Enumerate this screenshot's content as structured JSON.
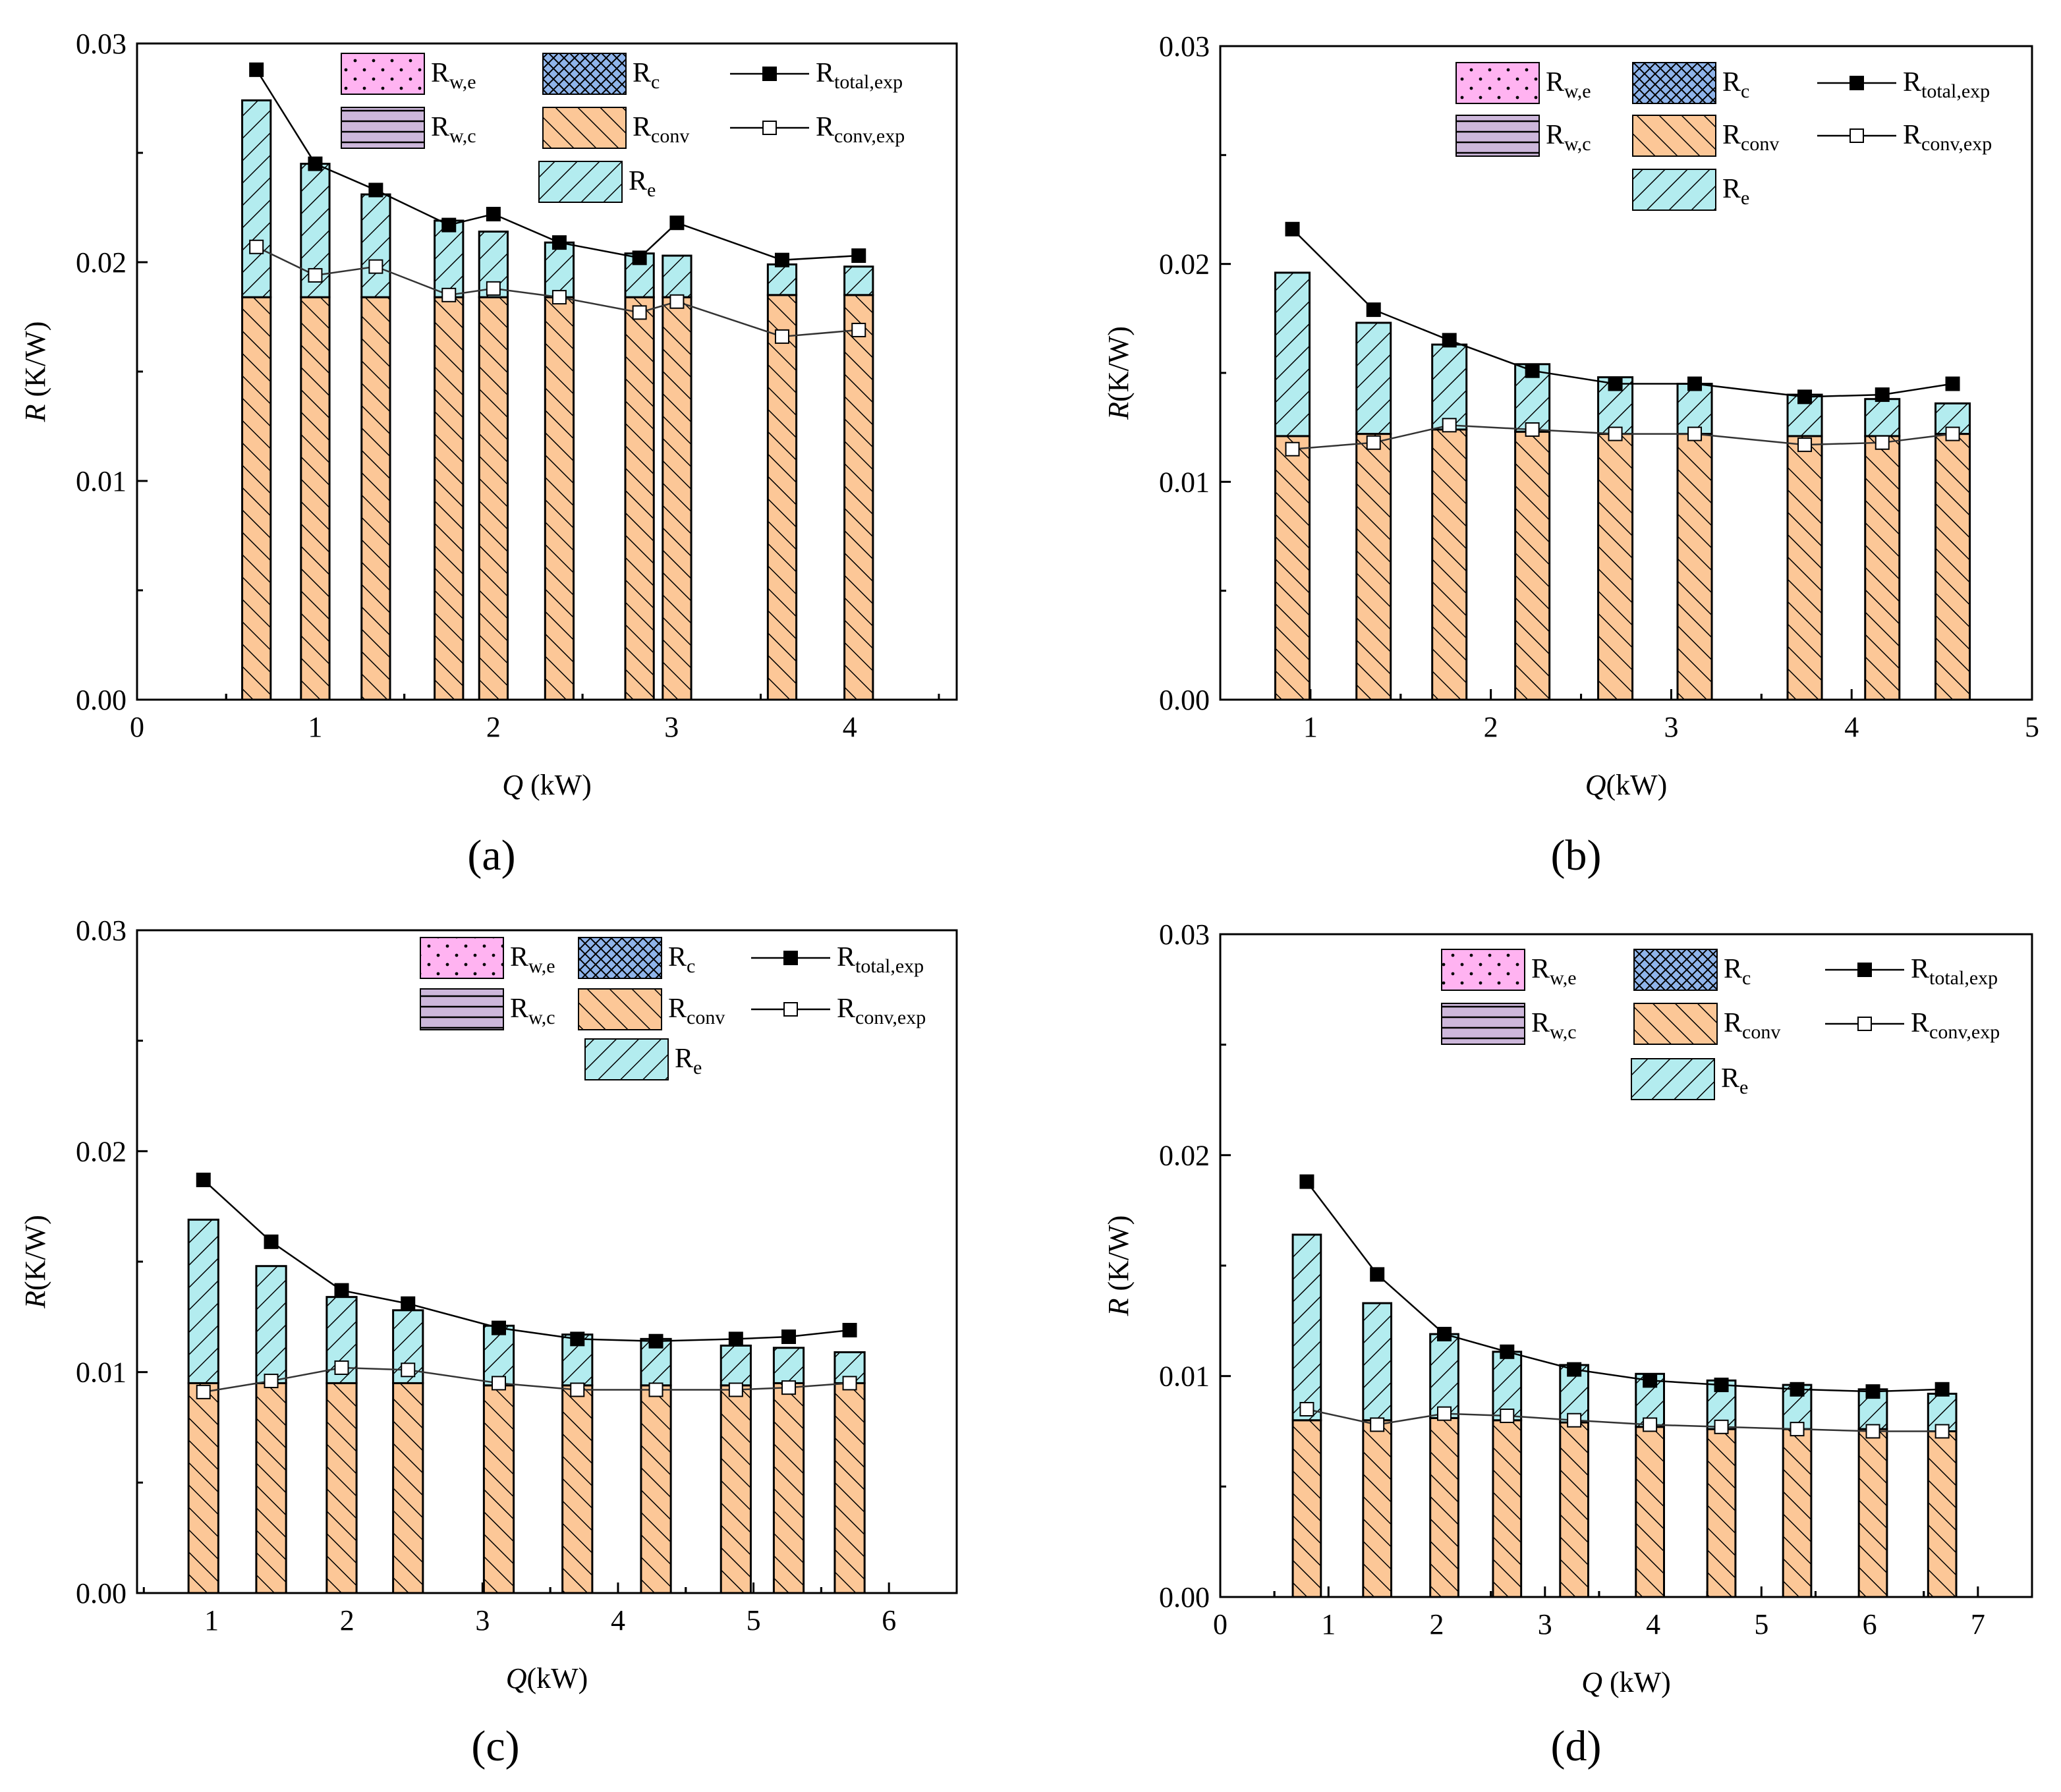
{
  "colors": {
    "conv": "#fcc797",
    "evap": "#b3ecef",
    "rwe": "#ffb3f1",
    "rwc": "#cdb7db",
    "rc": "#8fb4ea",
    "line": "#000000",
    "hatch": "#000000"
  },
  "chart_data": [
    {
      "panel": "a",
      "type": "bar",
      "stacked": true,
      "caption": "(a)",
      "xlabel_var": "Q",
      "xlabel_unit": " (kW)",
      "ylabel_var": "R",
      "ylabel_unit": " (K/W)",
      "xlim": [
        0,
        4.6
      ],
      "ylim": [
        0,
        0.03
      ],
      "xticks": [
        0,
        1,
        2,
        3,
        4
      ],
      "yticks": [
        "0.00",
        "0.01",
        "0.02",
        "0.03"
      ],
      "bar_width_kw": 0.16,
      "x": [
        0.67,
        1.0,
        1.34,
        1.75,
        2.0,
        2.37,
        2.82,
        3.03,
        3.62,
        4.05
      ],
      "series": [
        {
          "name": "Rconv",
          "values": [
            0.0184,
            0.0184,
            0.0184,
            0.0184,
            0.0184,
            0.0184,
            0.0184,
            0.0184,
            0.0185,
            0.0185
          ]
        },
        {
          "name": "Re",
          "values": [
            0.009,
            0.0061,
            0.0047,
            0.0035,
            0.003,
            0.0025,
            0.002,
            0.0019,
            0.0014,
            0.0013
          ]
        }
      ],
      "lines": [
        {
          "name": "Rtotal,exp",
          "values": [
            0.0288,
            0.0245,
            0.0233,
            0.0217,
            0.0222,
            0.0209,
            0.0202,
            0.0218,
            0.0201,
            0.0203
          ]
        },
        {
          "name": "Rconv,exp",
          "values": [
            0.0207,
            0.0194,
            0.0198,
            0.0185,
            0.0188,
            0.0184,
            0.0177,
            0.0182,
            0.0166,
            0.0169
          ]
        }
      ]
    },
    {
      "panel": "b",
      "type": "bar",
      "stacked": true,
      "caption": "(b)",
      "xlabel_var": "Q",
      "xlabel_unit": "(kW)",
      "ylabel_var": "R",
      "ylabel_unit": "(K/W)",
      "xlim": [
        0.5,
        5
      ],
      "ylim": [
        0,
        0.03
      ],
      "xticks": [
        1,
        2,
        3,
        4,
        5
      ],
      "yticks": [
        "0.00",
        "0.01",
        "0.02",
        "0.03"
      ],
      "bar_width_kw": 0.19,
      "x": [
        0.9,
        1.35,
        1.77,
        2.23,
        2.69,
        3.13,
        3.74,
        4.17,
        4.56
      ],
      "series": [
        {
          "name": "Rconv",
          "values": [
            0.0121,
            0.0122,
            0.0124,
            0.0123,
            0.0122,
            0.0122,
            0.0121,
            0.0121,
            0.0122
          ]
        },
        {
          "name": "Re",
          "values": [
            0.0075,
            0.0051,
            0.0039,
            0.0031,
            0.0026,
            0.0023,
            0.0019,
            0.0017,
            0.0014
          ]
        }
      ],
      "lines": [
        {
          "name": "Rtotal,exp",
          "values": [
            0.0216,
            0.0179,
            0.0165,
            0.0151,
            0.0145,
            0.0145,
            0.0139,
            0.014,
            0.0145
          ]
        },
        {
          "name": "Rconv,exp",
          "values": [
            0.0115,
            0.0118,
            0.0126,
            0.0124,
            0.0122,
            0.0122,
            0.0117,
            0.0118,
            0.0122
          ]
        }
      ]
    },
    {
      "panel": "c",
      "type": "bar",
      "stacked": true,
      "caption": "(c)",
      "xlabel_var": "Q",
      "xlabel_unit": "(kW)",
      "ylabel_var": "R",
      "ylabel_unit": "(K/W)",
      "xlim": [
        0.45,
        6.5
      ],
      "ylim": [
        0,
        0.03
      ],
      "xticks": [
        1,
        2,
        3,
        4,
        5,
        6
      ],
      "yticks": [
        "0.00",
        "0.01",
        "0.02",
        "0.03"
      ],
      "bar_width_kw": 0.22,
      "x": [
        0.94,
        1.44,
        1.96,
        2.45,
        3.12,
        3.7,
        4.28,
        4.87,
        5.26,
        5.71
      ],
      "series": [
        {
          "name": "Rconv",
          "values": [
            0.0095,
            0.0095,
            0.0095,
            0.0095,
            0.0094,
            0.0094,
            0.0094,
            0.0094,
            0.0095,
            0.0095
          ]
        },
        {
          "name": "Re",
          "values": [
            0.0074,
            0.0053,
            0.0039,
            0.0033,
            0.0027,
            0.0023,
            0.0021,
            0.0018,
            0.0016,
            0.0014
          ]
        }
      ],
      "lines": [
        {
          "name": "Rtotal,exp",
          "values": [
            0.0187,
            0.0159,
            0.0137,
            0.0131,
            0.012,
            0.0115,
            0.0114,
            0.0115,
            0.0116,
            0.0119
          ]
        },
        {
          "name": "Rconv,exp",
          "values": [
            0.0091,
            0.0096,
            0.0102,
            0.0101,
            0.0095,
            0.0092,
            0.0092,
            0.0092,
            0.0093,
            0.0095
          ]
        }
      ]
    },
    {
      "panel": "d",
      "type": "bar",
      "stacked": true,
      "caption": "(d)",
      "xlabel_var": "Q",
      "xlabel_unit": " (kW)",
      "ylabel_var": "R",
      "ylabel_unit": " (K/W)",
      "xlim": [
        0,
        7.5
      ],
      "ylim": [
        0,
        0.03
      ],
      "xticks": [
        0,
        1,
        2,
        3,
        4,
        5,
        6,
        7
      ],
      "yticks": [
        "0.00",
        "0.01",
        "0.02",
        "0.03"
      ],
      "bar_width_kw": 0.26,
      "x": [
        0.8,
        1.45,
        2.07,
        2.65,
        3.27,
        3.97,
        4.63,
        5.33,
        6.03,
        6.67
      ],
      "series": [
        {
          "name": "Rconv",
          "values": [
            0.008,
            0.008,
            0.0081,
            0.008,
            0.0079,
            0.0077,
            0.0076,
            0.0076,
            0.0076,
            0.0075
          ]
        },
        {
          "name": "Re",
          "values": [
            0.0084,
            0.0053,
            0.0038,
            0.0031,
            0.0026,
            0.0024,
            0.0022,
            0.002,
            0.0018,
            0.0017
          ]
        }
      ],
      "lines": [
        {
          "name": "Rtotal,exp",
          "values": [
            0.0188,
            0.0146,
            0.0119,
            0.0111,
            0.0103,
            0.0098,
            0.0096,
            0.0094,
            0.0093,
            0.0094
          ]
        },
        {
          "name": "Rconv,exp",
          "values": [
            0.0085,
            0.0078,
            0.0083,
            0.0082,
            0.008,
            0.0078,
            0.0077,
            0.0076,
            0.0075,
            0.0075
          ]
        }
      ]
    }
  ],
  "legend": {
    "rwe": {
      "base": "R",
      "sub": "w,e"
    },
    "rwc": {
      "base": "R",
      "sub": "w,c"
    },
    "rc": {
      "base": "R",
      "sub": "c"
    },
    "rconv": {
      "base": "R",
      "sub": "conv"
    },
    "re": {
      "base": "R",
      "sub": "e"
    },
    "rtotal": {
      "base": "R",
      "sub": "total,exp"
    },
    "rconvexp": {
      "base": "R",
      "sub": "conv,exp"
    }
  }
}
